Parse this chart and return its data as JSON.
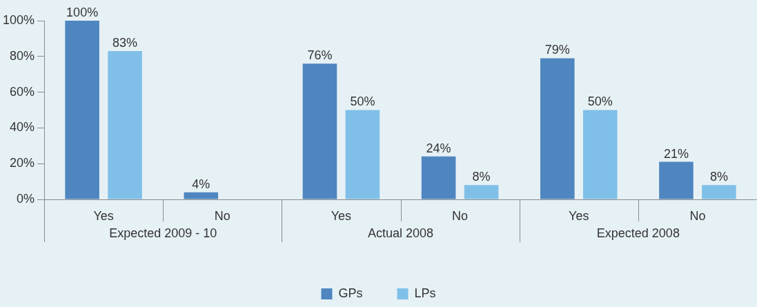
{
  "chart_data": {
    "type": "bar",
    "categories": [
      "Yes",
      "No",
      "Yes",
      "No",
      "Yes",
      "No"
    ],
    "annotations": [
      "Expected 2009 - 10",
      "Actual 2008",
      "Expected 2008"
    ],
    "series": [
      {
        "name": "GPs",
        "color": "#4f86c0",
        "values": [
          100,
          4,
          76,
          24,
          79,
          21
        ],
        "value_labels": [
          "100%",
          "4%",
          "76%",
          "24%",
          "79%",
          "21%"
        ]
      },
      {
        "name": "LPs",
        "color": "#80c0e8",
        "values": [
          83,
          null,
          50,
          8,
          50,
          8
        ],
        "value_labels": [
          "83%",
          null,
          "50%",
          "8%",
          "50%",
          "8%"
        ]
      }
    ],
    "ylim": [
      0,
      100
    ],
    "yticks": [
      {
        "value": 0,
        "label": "0%"
      },
      {
        "value": 20,
        "label": "20%"
      },
      {
        "value": 40,
        "label": "40%"
      },
      {
        "value": 60,
        "label": "60%"
      },
      {
        "value": 80,
        "label": "80%"
      },
      {
        "value": 100,
        "label": "100%"
      }
    ],
    "legend": "bottom"
  }
}
